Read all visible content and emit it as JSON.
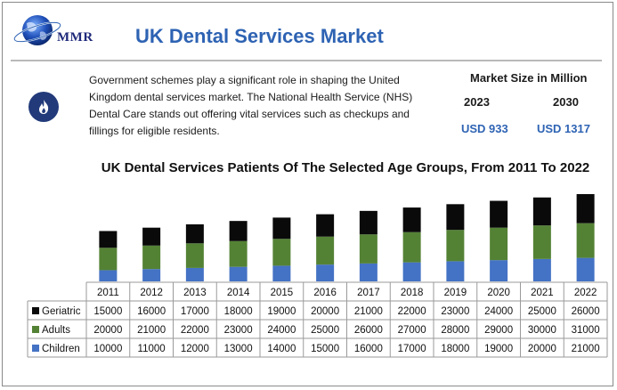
{
  "header": {
    "logo_text": "MMR",
    "title": "UK Dental Services Market"
  },
  "summary": {
    "icon": "flame-icon",
    "description": "Government schemes play a significant role in shaping the United Kingdom dental services market. The National Health Service (NHS) Dental Care stands out offering vital services such as checkups and fillings for eligible residents."
  },
  "market_size": {
    "label": "Market Size in Million",
    "year_1": "2023",
    "year_2": "2030",
    "value_1": "USD 933",
    "value_2": "USD 1317"
  },
  "colors": {
    "children": "#4472c4",
    "adults": "#548235",
    "geriatric": "#0a0a0a",
    "accent": "#2e63b3"
  },
  "chart_data": {
    "type": "bar",
    "stacked": true,
    "title": "UK Dental Services Patients Of The Selected Age Groups, From 2011 To 2022",
    "categories": [
      "2011",
      "2012",
      "2013",
      "2014",
      "2015",
      "2016",
      "2017",
      "2018",
      "2019",
      "2020",
      "2021",
      "2022"
    ],
    "series": [
      {
        "name": "Geriatric",
        "values": [
          15000,
          16000,
          17000,
          18000,
          19000,
          20000,
          21000,
          22000,
          23000,
          24000,
          25000,
          26000
        ]
      },
      {
        "name": "Adults",
        "values": [
          20000,
          21000,
          22000,
          23000,
          24000,
          25000,
          26000,
          27000,
          28000,
          29000,
          30000,
          31000
        ]
      },
      {
        "name": "Children",
        "values": [
          10000,
          11000,
          12000,
          13000,
          14000,
          15000,
          16000,
          17000,
          18000,
          19000,
          20000,
          21000
        ]
      }
    ],
    "data_table": true,
    "grid": false,
    "axes_visible": false
  }
}
